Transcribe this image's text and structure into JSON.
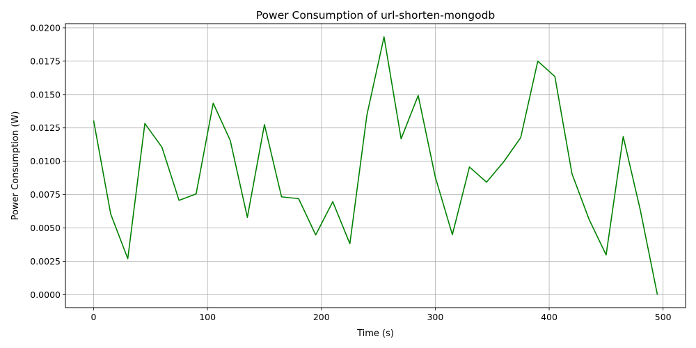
{
  "chart_data": {
    "type": "line",
    "title": "Power Consumption of url-shorten-mongodb",
    "xlabel": "Time (s)",
    "ylabel": "Power Consumption (W)",
    "xlim": [
      -24.75,
      519.75
    ],
    "ylim": [
      -0.00097,
      0.02031
    ],
    "x_ticks": [
      0,
      100,
      200,
      300,
      400,
      500
    ],
    "x_tick_labels": [
      "0",
      "100",
      "200",
      "300",
      "400",
      "500"
    ],
    "y_ticks": [
      0,
      0.0025,
      0.005,
      0.0075,
      0.01,
      0.0125,
      0.015,
      0.0175,
      0.02
    ],
    "y_tick_labels": [
      "0.0000",
      "0.0025",
      "0.0050",
      "0.0075",
      "0.0100",
      "0.0125",
      "0.0150",
      "0.0175",
      "0.0200"
    ],
    "grid": true,
    "line_color": "#008000",
    "series": [
      {
        "x": [
          0,
          15,
          30,
          45,
          60,
          75,
          90,
          105,
          120,
          135,
          150,
          165,
          180,
          195,
          210,
          225,
          240,
          255,
          270,
          285,
          300,
          315,
          330,
          345,
          360,
          375,
          390,
          405,
          420,
          435,
          450,
          465,
          480,
          495
        ],
        "values": [
          0.01305,
          0.00605,
          0.0027,
          0.01283,
          0.01105,
          0.00707,
          0.00755,
          0.01435,
          0.01155,
          0.0058,
          0.01275,
          0.00733,
          0.0072,
          0.00448,
          0.00697,
          0.00382,
          0.01348,
          0.01932,
          0.01168,
          0.01493,
          0.00882,
          0.0045,
          0.00957,
          0.00843,
          0.00995,
          0.01177,
          0.0175,
          0.01635,
          0.00907,
          0.00565,
          0.00298,
          0.01185,
          0.00635,
          0.0
        ]
      }
    ]
  }
}
